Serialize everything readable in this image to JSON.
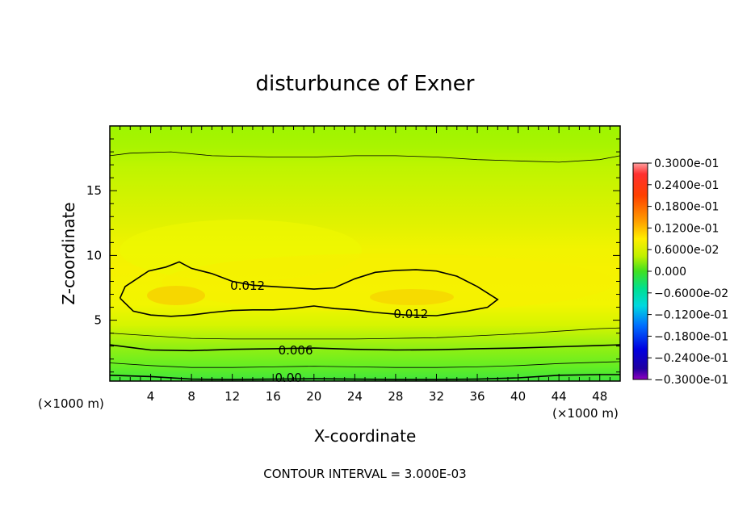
{
  "chart_data": {
    "type": "contour",
    "title": "disturbunce of Exner",
    "xlabel": "X-coordinate",
    "ylabel": "Z-coordinate",
    "x_unit": "(×1000 m)",
    "x_range": [
      0,
      50
    ],
    "y_range": [
      0.3,
      20
    ],
    "x_ticks": [
      4,
      8,
      12,
      16,
      20,
      24,
      28,
      32,
      36,
      40,
      44,
      48
    ],
    "y_ticks": [
      5,
      10,
      15
    ],
    "contour_interval_text": "CONTOUR INTERVAL = 3.000E-03",
    "contour_labels": [
      {
        "text": "0.012",
        "x": 13.5,
        "z": 7.6
      },
      {
        "text": "0.012",
        "x": 29.5,
        "z": 5.4
      },
      {
        "text": "0.006",
        "x": 18.2,
        "z": 2.6
      },
      {
        "text": "0.00",
        "x": 17.5,
        "z": 0.5
      }
    ],
    "colorbar": {
      "min": -0.03,
      "max": 0.03,
      "labels": [
        "0.3000e-01",
        "0.2400e-01",
        "0.1800e-01",
        "0.1200e-01",
        "0.6000e-02",
        "0.000",
        "−0.6000e-02",
        "−0.1200e-01",
        "−0.1800e-01",
        "−0.2400e-01",
        "−0.3000e-01"
      ],
      "label_values": [
        0.03,
        0.024,
        0.018,
        0.012,
        0.006,
        0.0,
        -0.006,
        -0.012,
        -0.018,
        -0.024,
        -0.03
      ]
    },
    "contour_lines": [
      {
        "level": 0.012,
        "points": [
          [
            1,
            6.7
          ],
          [
            1.5,
            7.6
          ],
          [
            3.8,
            8.8
          ],
          [
            5.5,
            9.1
          ],
          [
            6.8,
            9.5
          ],
          [
            8,
            9.0
          ],
          [
            10,
            8.6
          ],
          [
            12,
            8.0
          ],
          [
            14,
            7.7
          ],
          [
            16,
            7.6
          ],
          [
            18,
            7.5
          ],
          [
            20,
            7.4
          ],
          [
            22,
            7.5
          ],
          [
            24,
            8.2
          ],
          [
            26,
            8.7
          ],
          [
            28,
            8.85
          ],
          [
            30,
            8.9
          ],
          [
            32,
            8.8
          ],
          [
            34,
            8.4
          ],
          [
            36,
            7.6
          ],
          [
            38,
            6.6
          ],
          [
            37,
            6.0
          ],
          [
            35,
            5.7
          ],
          [
            32,
            5.35
          ],
          [
            29,
            5.4
          ],
          [
            26,
            5.6
          ],
          [
            24,
            5.8
          ],
          [
            22,
            5.9
          ],
          [
            20,
            6.1
          ],
          [
            18,
            5.9
          ],
          [
            16,
            5.8
          ],
          [
            14,
            5.8
          ],
          [
            12,
            5.75
          ],
          [
            10,
            5.6
          ],
          [
            8,
            5.4
          ],
          [
            6,
            5.3
          ],
          [
            4,
            5.4
          ],
          [
            2.3,
            5.7
          ],
          [
            1,
            6.7
          ]
        ]
      },
      {
        "level": 0.006,
        "points": [
          [
            0,
            3.1
          ],
          [
            2,
            2.9
          ],
          [
            4,
            2.7
          ],
          [
            8,
            2.65
          ],
          [
            12,
            2.75
          ],
          [
            16,
            2.8
          ],
          [
            20,
            2.85
          ],
          [
            24,
            2.75
          ],
          [
            28,
            2.7
          ],
          [
            32,
            2.72
          ],
          [
            36,
            2.8
          ],
          [
            40,
            2.85
          ],
          [
            44,
            2.95
          ],
          [
            48,
            3.05
          ],
          [
            50,
            3.1
          ]
        ]
      },
      {
        "level": 0.0,
        "points": [
          [
            0,
            0.75
          ],
          [
            4,
            0.65
          ],
          [
            8,
            0.45
          ],
          [
            12,
            0.42
          ],
          [
            16,
            0.45
          ],
          [
            20,
            0.48
          ],
          [
            24,
            0.45
          ],
          [
            28,
            0.42
          ],
          [
            32,
            0.42
          ],
          [
            36,
            0.45
          ],
          [
            40,
            0.55
          ],
          [
            44,
            0.75
          ],
          [
            48,
            0.8
          ],
          [
            50,
            0.8
          ]
        ]
      },
      {
        "level": 0.003,
        "points": [
          [
            0,
            1.7
          ],
          [
            4,
            1.5
          ],
          [
            8,
            1.35
          ],
          [
            12,
            1.35
          ],
          [
            16,
            1.4
          ],
          [
            20,
            1.45
          ],
          [
            24,
            1.4
          ],
          [
            28,
            1.35
          ],
          [
            32,
            1.35
          ],
          [
            36,
            1.4
          ],
          [
            40,
            1.5
          ],
          [
            44,
            1.65
          ],
          [
            48,
            1.75
          ],
          [
            50,
            1.8
          ]
        ]
      },
      {
        "level": 0.009,
        "points": [
          [
            0,
            4.0
          ],
          [
            4,
            3.8
          ],
          [
            8,
            3.6
          ],
          [
            12,
            3.55
          ],
          [
            16,
            3.55
          ],
          [
            20,
            3.55
          ],
          [
            24,
            3.55
          ],
          [
            28,
            3.6
          ],
          [
            32,
            3.65
          ],
          [
            36,
            3.8
          ],
          [
            40,
            3.95
          ],
          [
            44,
            4.15
          ],
          [
            48,
            4.35
          ],
          [
            50,
            4.4
          ]
        ]
      },
      {
        "level": 0.003,
        "points": [
          [
            0,
            17.7
          ],
          [
            2,
            17.9
          ],
          [
            6,
            18.0
          ],
          [
            10,
            17.7
          ],
          [
            16,
            17.6
          ],
          [
            20,
            17.6
          ],
          [
            24,
            17.7
          ],
          [
            28,
            17.7
          ],
          [
            32,
            17.6
          ],
          [
            36,
            17.4
          ],
          [
            40,
            17.3
          ],
          [
            44,
            17.2
          ],
          [
            48,
            17.4
          ],
          [
            50,
            17.7
          ]
        ]
      }
    ]
  }
}
